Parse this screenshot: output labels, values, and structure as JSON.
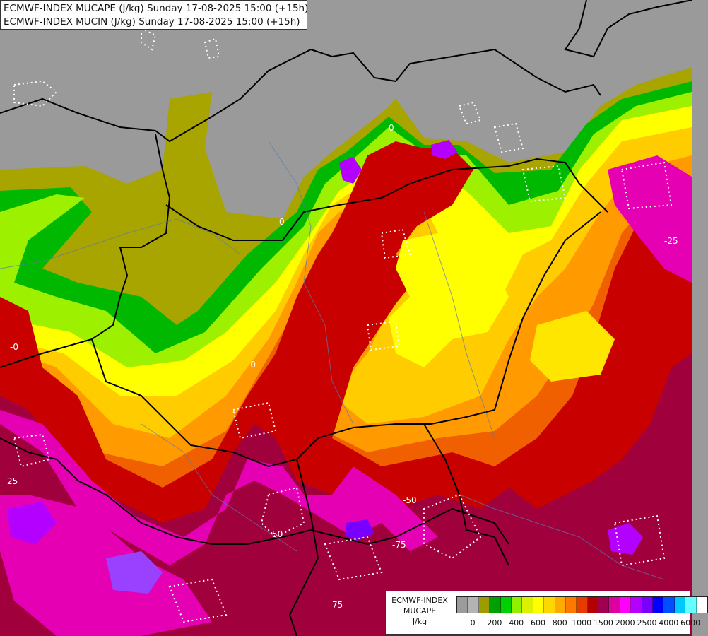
{
  "header": {
    "line1": "ECMWF-INDEX MUCAPE (J/kg) Sunday 17-08-2025 15:00 (+15h)",
    "line2": "ECMWF-INDEX MUCIN (J/kg) Sunday 17-08-2025 15:00 (+15h)"
  },
  "legend": {
    "title_line1": "ECMWF-INDEX",
    "title_line2": "MUCAPE",
    "title_line3": "J/kg",
    "colors": [
      "#9b9b9b",
      "#b4b4b4",
      "#9c9c00",
      "#00a000",
      "#00d000",
      "#90f000",
      "#dcf000",
      "#ffff00",
      "#ffd700",
      "#ffaa00",
      "#ff7800",
      "#e63c00",
      "#b40000",
      "#a00050",
      "#dc00a0",
      "#ff00ff",
      "#b400ff",
      "#7800ff",
      "#0000ff",
      "#0050ff",
      "#00c8ff",
      "#64ffff",
      "#ffffff"
    ],
    "tick_labels": [
      {
        "text": "0",
        "index": 1
      },
      {
        "text": "200",
        "index": 3
      },
      {
        "text": "400",
        "index": 5
      },
      {
        "text": "600",
        "index": 7
      },
      {
        "text": "800",
        "index": 9
      },
      {
        "text": "1000",
        "index": 11
      },
      {
        "text": "1500",
        "index": 13
      },
      {
        "text": "2000",
        "index": 15
      },
      {
        "text": "2500",
        "index": 17
      },
      {
        "text": "4000",
        "index": 19
      },
      {
        "text": "6000",
        "index": 21
      }
    ]
  },
  "map": {
    "cin_contour_labels": [
      "0",
      "-0",
      "-25",
      "25",
      "-50",
      "50",
      "-75",
      "75",
      "-0",
      "0"
    ]
  }
}
